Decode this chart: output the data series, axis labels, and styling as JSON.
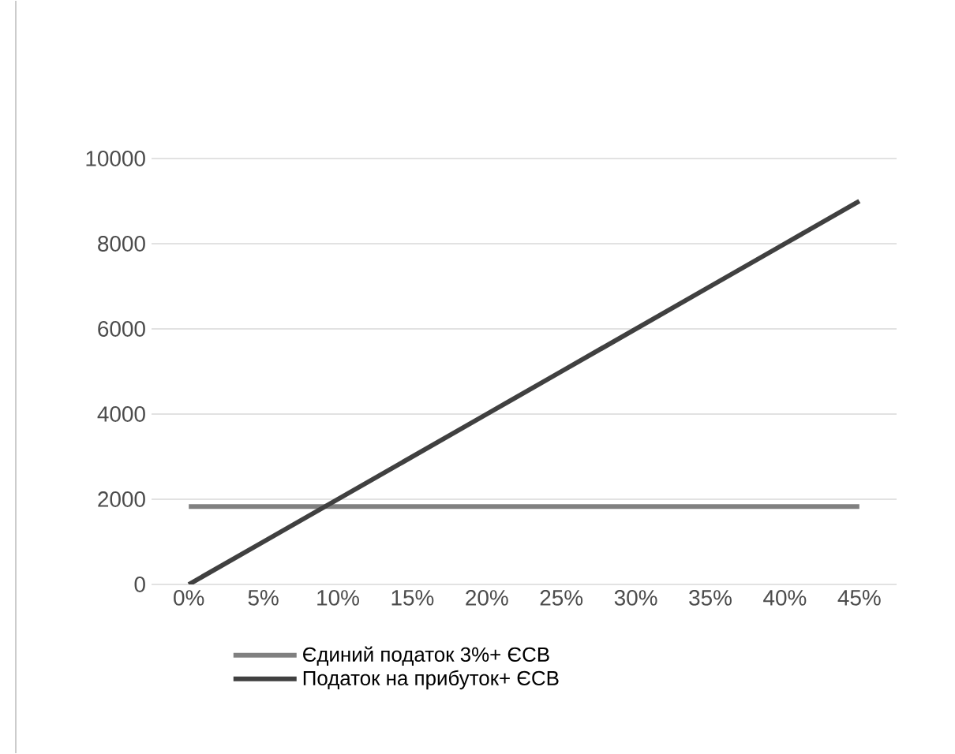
{
  "chart_data": {
    "type": "line",
    "categories": [
      "0%",
      "5%",
      "10%",
      "15%",
      "20%",
      "25%",
      "30%",
      "35%",
      "40%",
      "45%"
    ],
    "series": [
      {
        "name": "Єдиний податок 3%+ ЄСВ",
        "color": "#808080",
        "values": [
          1830,
          1830,
          1830,
          1830,
          1830,
          1830,
          1830,
          1830,
          1830,
          1830
        ]
      },
      {
        "name": "Податок на прибуток+ ЄСВ",
        "color": "#404040",
        "values": [
          0,
          1000,
          2000,
          3000,
          4000,
          5000,
          6000,
          7000,
          8000,
          9000
        ]
      }
    ],
    "ylim": [
      0,
      10000
    ],
    "yticks": [
      0,
      2000,
      4000,
      6000,
      8000,
      10000
    ],
    "grid": "y",
    "legend": "bottom"
  }
}
